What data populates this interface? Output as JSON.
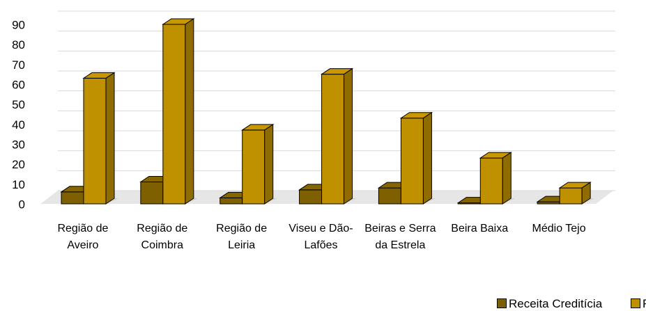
{
  "chart_data": {
    "type": "bar3d",
    "categories": [
      "Região de Aveiro",
      "Região de Coimbra",
      "Região de Leiria",
      "Viseu e Dão-Lafões",
      "Beiras e Serra da Estrela",
      "Beira Baixa",
      "Médio Tejo"
    ],
    "series": [
      {
        "name": "Receita Creditícia",
        "color": "#7f6000",
        "values": [
          6,
          11,
          3,
          7,
          8,
          0.5,
          1
        ]
      },
      {
        "name": "Receita Comunitária",
        "color": "#bf9000",
        "values": [
          63,
          90,
          37,
          65,
          43,
          23,
          8
        ]
      }
    ],
    "ylim": [
      0,
      90
    ],
    "yticks": [
      0,
      10,
      20,
      30,
      40,
      50,
      60,
      70,
      80,
      90
    ],
    "grid": true,
    "legend": "bottom-right"
  }
}
